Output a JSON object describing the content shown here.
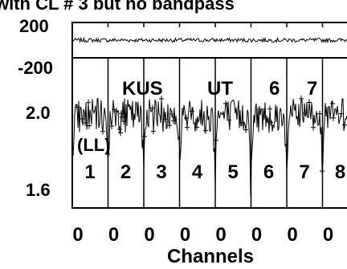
{
  "chart_data": {
    "type": "scatter",
    "title": "with CL # 3 but no bandpass",
    "xlabel": "Channels",
    "x_tick_labels": [
      "0",
      "0",
      "0",
      "0",
      "0",
      "0",
      "0",
      "0"
    ],
    "upper_panel": {
      "ylim": [
        -200,
        200
      ],
      "tick_labels": [
        "200",
        "-200"
      ],
      "series": [
        {
          "level": 0
        }
      ]
    },
    "lower_panel": {
      "ylim": [
        1.6,
        2.3
      ],
      "tick_labels": [
        "2.0",
        "1.6"
      ],
      "series": [
        {
          "level": 2.03
        }
      ]
    },
    "annotations": {
      "source": "KUS",
      "pol": "(LL)",
      "extra_labels": [
        "UT",
        "6",
        "7"
      ],
      "channels": [
        "1",
        "2",
        "3",
        "4",
        "5",
        "6",
        "7",
        "8"
      ]
    }
  }
}
